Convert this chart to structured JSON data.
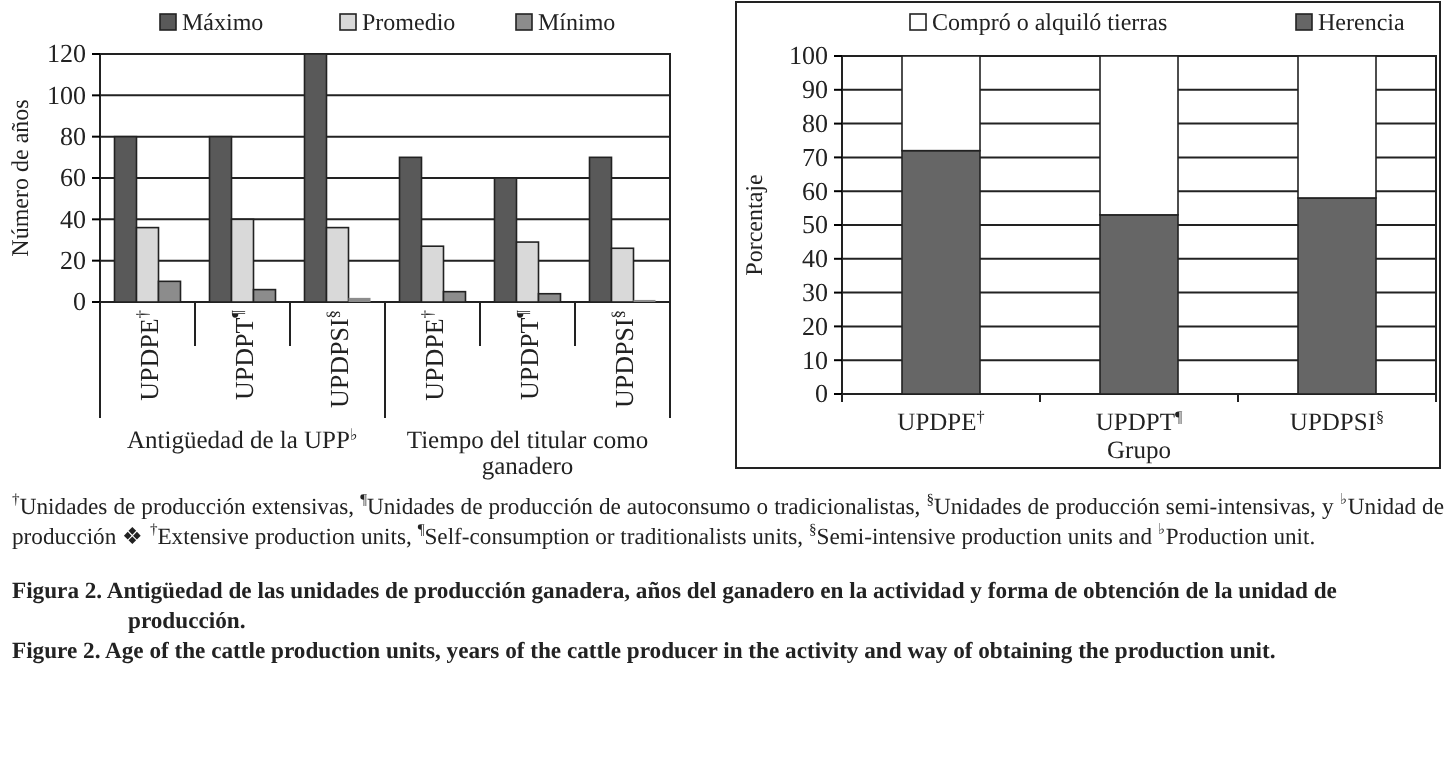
{
  "chart_data": [
    {
      "type": "bar",
      "ylabel": "Número de años",
      "categories": [
        "UPDPE$^{†}$",
        "UPDPT$^{¶}$",
        "UPDPSI$^{§}$",
        "UPDPE$^{†}$",
        "UPDPT$^{¶}$",
        "UPDPSI$^{§}$"
      ],
      "series": [
        {
          "name": "Máximo",
          "color": "#595959",
          "values": [
            80,
            80,
            120,
            70,
            60,
            70
          ]
        },
        {
          "name": "Promedio",
          "color": "#d9d9d9",
          "values": [
            36,
            40,
            36,
            27,
            29,
            26
          ]
        },
        {
          "name": "Mínimo",
          "color": "#8c8c8c",
          "values": [
            10,
            6,
            2,
            5,
            4,
            1
          ]
        }
      ],
      "ylim": [
        0,
        120
      ],
      "yticks": [
        0,
        20,
        40,
        60,
        80,
        100,
        120
      ],
      "grid": "y",
      "legend": "top",
      "annotations": [
        "Antigüedad de la UPP$^{♭}$",
        "Tiempo del titular como ganadero",
        "$^{†}$Unidades de producción extensivas, $^{¶}$Unidades de producción de autoconsumo o tradicionalistas, $^{§}$Unidades de producción semi-intensivas, y $^{♭}$Unidad de producción ❖ $^{†}$Extensive production units, $^{¶}$Self-consumption or traditionalists units, $^{§}$Semi-intensive production units and $^{♭}$Production unit.",
        "Figura 2. Antigüedad de las unidades de producción ganadera, años del ganadero en la actividad y forma de obtención de la unidad de producción.",
        "Figure 2. Age of the cattle production units, years of the cattle producer in the activity and way of obtaining the production unit."
      ]
    },
    {
      "type": "bar",
      "stacked": true,
      "xlabel": "Grupo",
      "ylabel": "Porcentaje",
      "categories": [
        "UPDPE$^{†}$",
        "UPDPT$^{¶}$",
        "UPDPSI$^{§}$"
      ],
      "series": [
        {
          "name": "Herencia",
          "color": "#666666",
          "values": [
            72,
            53,
            58
          ]
        },
        {
          "name": "Compró o alquiló tierras",
          "color": "#ffffff",
          "values": [
            28,
            47,
            42
          ]
        }
      ],
      "ylim": [
        0,
        100
      ],
      "yticks": [
        0,
        10,
        20,
        30,
        40,
        50,
        60,
        70,
        80,
        90,
        100
      ],
      "grid": "y",
      "legend": "top"
    }
  ]
}
